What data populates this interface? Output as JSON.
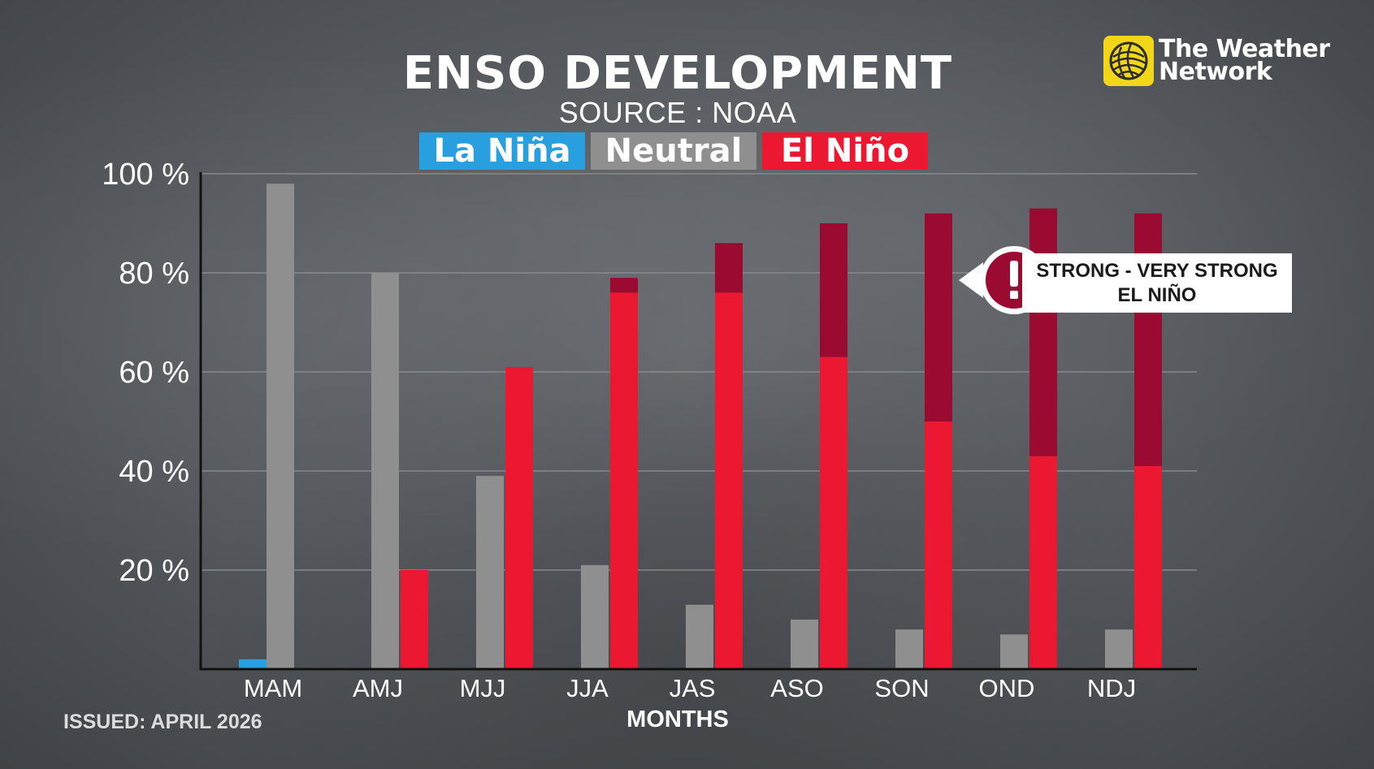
{
  "colors": {
    "la_nina": "#2a9fe0",
    "neutral": "#8f8f8f",
    "el_nino": "#ec1832",
    "el_nino_strong": "#9a0a31",
    "gridline": "#8a8d90",
    "axis": "#111111"
  },
  "logo": {
    "line1": "The Weather",
    "line2": "Network",
    "icon": "weather-network-globe-icon"
  },
  "footer": {
    "issued": "ISSUED: APRIL 2026"
  },
  "callout": {
    "icon": "exclamation-icon",
    "line1": "STRONG - VERY STRONG",
    "line2": "EL NIÑO"
  },
  "chart_data": {
    "type": "bar",
    "title": "ENSO DEVELOPMENT",
    "subtitle": "SOURCE : NOAA",
    "xlabel": "MONTHS",
    "ylabel": "",
    "ylim": [
      0,
      100
    ],
    "yticks": [
      20,
      40,
      60,
      80,
      100
    ],
    "ytick_labels": [
      "20 %",
      "40 %",
      "60 %",
      "80 %",
      "100 %"
    ],
    "grid": true,
    "legend_position": "top-center",
    "categories": [
      "MAM",
      "AMJ",
      "MJJ",
      "JJA",
      "JAS",
      "ASO",
      "SON",
      "OND",
      "NDJ"
    ],
    "series": [
      {
        "name": "La Niña",
        "values": [
          2,
          0,
          0,
          0,
          0,
          0,
          0,
          0,
          0
        ]
      },
      {
        "name": "Neutral",
        "values": [
          98,
          80,
          39,
          21,
          13,
          10,
          8,
          7,
          8
        ]
      },
      {
        "name": "El Niño",
        "values": [
          0,
          20,
          61,
          79,
          86,
          90,
          92,
          93,
          92
        ]
      }
    ],
    "el_nino_strong_portion": [
      0,
      0,
      0,
      3,
      10,
      27,
      42,
      50,
      51
    ]
  }
}
